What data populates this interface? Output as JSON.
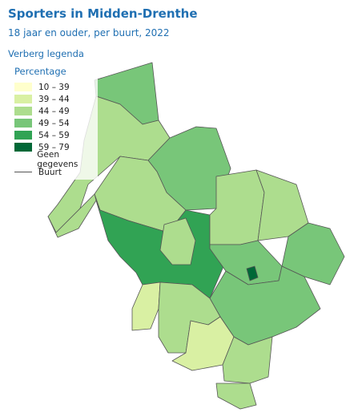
{
  "header": {
    "title": "Sporters in Midden-Drenthe",
    "subtitle": "18 jaar en ouder, per buurt, 2022",
    "toggle_label": "Verberg legenda"
  },
  "legend": {
    "title": "Percentage",
    "classes": [
      {
        "label": "10 – 39",
        "color": "#ffffcc"
      },
      {
        "label": "39 – 44",
        "color": "#d9f0a3"
      },
      {
        "label": "44 – 49",
        "color": "#addd8e"
      },
      {
        "label": "49 – 54",
        "color": "#78c679"
      },
      {
        "label": "54 – 59",
        "color": "#31a354"
      },
      {
        "label": "59 – 79",
        "color": "#006837"
      }
    ],
    "no_data": {
      "label": "Geen gegevens",
      "color": "#ffffff"
    },
    "boundary": {
      "label": "Buurt"
    }
  }
}
